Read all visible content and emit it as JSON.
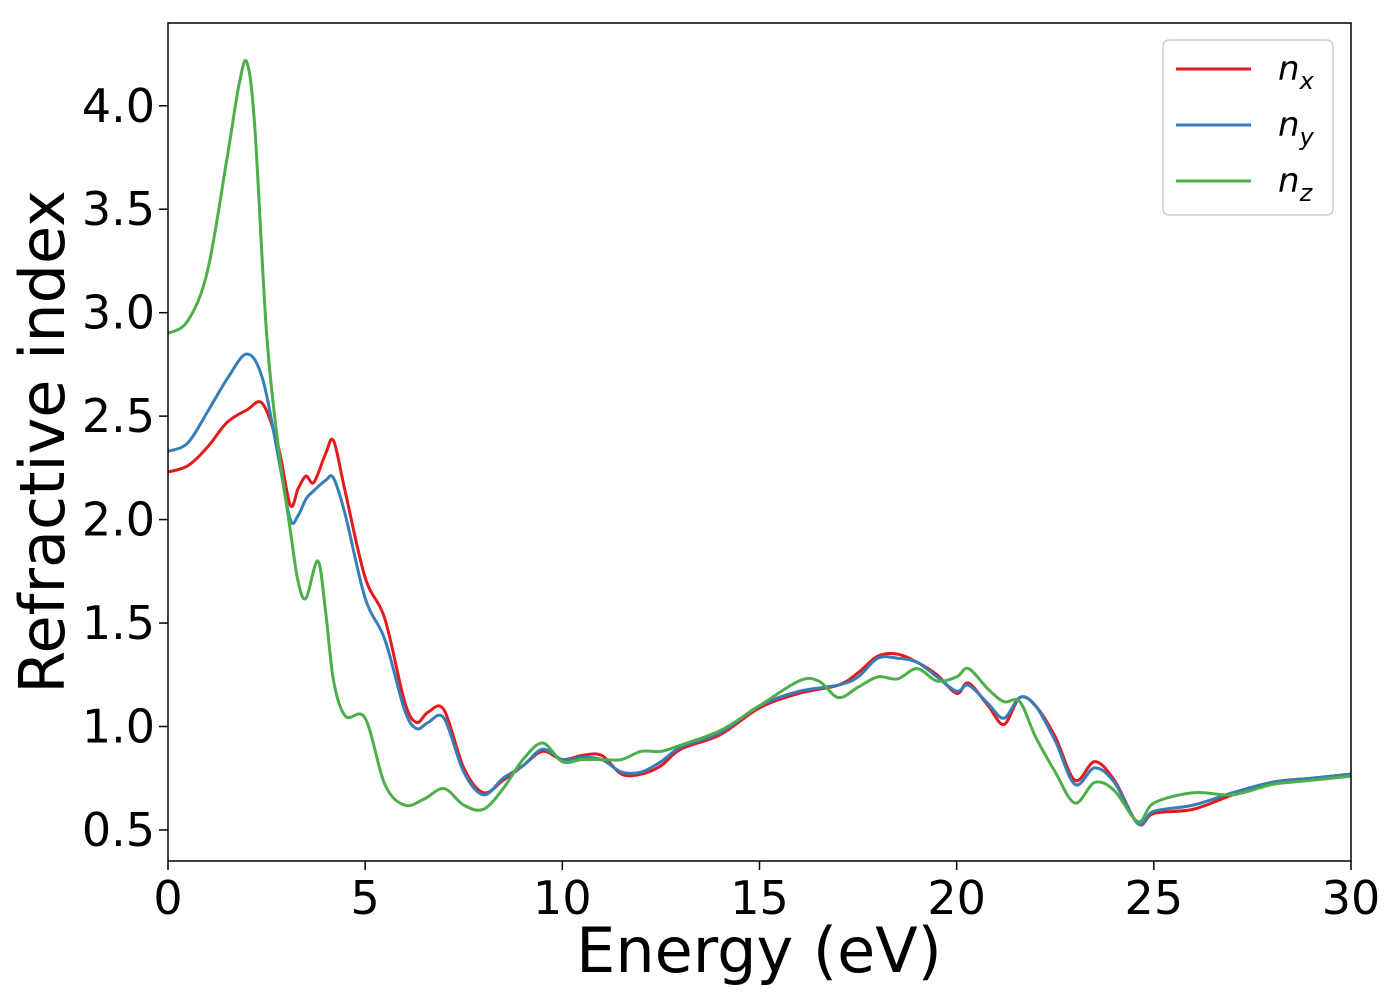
{
  "chart_data": {
    "type": "line",
    "title": "",
    "xlabel": "Energy (eV)",
    "ylabel": "Refractive index",
    "xlim": [
      0,
      30
    ],
    "ylim": [
      0.35,
      4.4
    ],
    "xticks": [
      0,
      5,
      10,
      15,
      20,
      25,
      30
    ],
    "xtick_labels": [
      "0",
      "5",
      "10",
      "15",
      "20",
      "25",
      "30"
    ],
    "yticks": [
      0.5,
      1.0,
      1.5,
      2.0,
      2.5,
      3.0,
      3.5,
      4.0
    ],
    "ytick_labels": [
      "0.5",
      "1.0",
      "1.5",
      "2.0",
      "2.5",
      "3.0",
      "3.5",
      "4.0"
    ],
    "grid": false,
    "legend_position": "top-right",
    "series": [
      {
        "name": "n",
        "subscript": "x",
        "color": "#e41a1c",
        "x": [
          0,
          0.5,
          1,
          1.5,
          2,
          2.4,
          2.8,
          3.1,
          3.3,
          3.5,
          3.7,
          4,
          4.2,
          4.5,
          5,
          5.5,
          6,
          6.3,
          6.6,
          7,
          7.5,
          8,
          8.5,
          9,
          9.5,
          10,
          10.5,
          11,
          11.5,
          12,
          12.5,
          13,
          14,
          15,
          16,
          17,
          17.5,
          18,
          18.5,
          19,
          19.5,
          20,
          20.3,
          20.8,
          21.2,
          21.6,
          22,
          22.5,
          23,
          23.5,
          24,
          24.6,
          25,
          26,
          27,
          28,
          29,
          30
        ],
        "y": [
          2.23,
          2.26,
          2.35,
          2.47,
          2.53,
          2.56,
          2.35,
          2.07,
          2.15,
          2.21,
          2.18,
          2.32,
          2.38,
          2.13,
          1.72,
          1.52,
          1.12,
          1.02,
          1.07,
          1.08,
          0.8,
          0.68,
          0.74,
          0.81,
          0.88,
          0.84,
          0.86,
          0.86,
          0.77,
          0.77,
          0.81,
          0.89,
          0.96,
          1.09,
          1.16,
          1.2,
          1.26,
          1.34,
          1.35,
          1.31,
          1.25,
          1.16,
          1.21,
          1.1,
          1.01,
          1.14,
          1.1,
          0.95,
          0.74,
          0.83,
          0.74,
          0.53,
          0.58,
          0.6,
          0.67,
          0.73,
          0.75,
          0.77
        ]
      },
      {
        "name": "n",
        "subscript": "y",
        "color": "#377eb8",
        "x": [
          0,
          0.5,
          1,
          1.5,
          2,
          2.4,
          2.8,
          3.1,
          3.3,
          3.5,
          3.7,
          4,
          4.2,
          4.5,
          5,
          5.5,
          6,
          6.3,
          6.6,
          7,
          7.5,
          8,
          8.5,
          9,
          9.5,
          10,
          10.5,
          11,
          11.5,
          12,
          12.5,
          13,
          14,
          15,
          16,
          17,
          17.5,
          18,
          18.5,
          19,
          19.5,
          20,
          20.3,
          20.8,
          21.2,
          21.6,
          22,
          22.5,
          23,
          23.5,
          24,
          24.6,
          25,
          26,
          27,
          28,
          29,
          30
        ],
        "y": [
          2.33,
          2.37,
          2.52,
          2.68,
          2.8,
          2.68,
          2.3,
          2.0,
          2.02,
          2.1,
          2.14,
          2.19,
          2.2,
          2.02,
          1.62,
          1.42,
          1.08,
          0.99,
          1.02,
          1.04,
          0.78,
          0.67,
          0.75,
          0.81,
          0.89,
          0.84,
          0.85,
          0.84,
          0.78,
          0.78,
          0.83,
          0.9,
          0.97,
          1.1,
          1.17,
          1.2,
          1.24,
          1.33,
          1.33,
          1.31,
          1.24,
          1.17,
          1.2,
          1.11,
          1.04,
          1.14,
          1.1,
          0.93,
          0.72,
          0.8,
          0.73,
          0.53,
          0.59,
          0.62,
          0.68,
          0.73,
          0.75,
          0.77
        ]
      },
      {
        "name": "n",
        "subscript": "z",
        "color": "#4daf4a",
        "x": [
          0,
          0.5,
          1,
          1.5,
          1.8,
          2,
          2.2,
          2.5,
          2.8,
          3.1,
          3.3,
          3.5,
          3.8,
          4,
          4.2,
          4.5,
          5,
          5.5,
          6,
          6.5,
          7,
          7.5,
          8,
          8.5,
          9,
          9.5,
          10,
          10.5,
          11,
          11.5,
          12,
          12.5,
          13,
          14,
          15,
          16,
          16.5,
          17,
          17.5,
          18,
          18.5,
          19,
          19.5,
          20,
          20.3,
          20.8,
          21.2,
          21.6,
          22,
          22.5,
          23,
          23.5,
          24,
          24.6,
          25,
          26,
          27,
          28,
          29,
          30
        ],
        "y": [
          2.9,
          2.96,
          3.2,
          3.75,
          4.1,
          4.21,
          3.9,
          2.9,
          2.35,
          1.95,
          1.7,
          1.62,
          1.8,
          1.55,
          1.22,
          1.05,
          1.04,
          0.72,
          0.62,
          0.65,
          0.7,
          0.62,
          0.6,
          0.7,
          0.84,
          0.92,
          0.83,
          0.84,
          0.84,
          0.84,
          0.88,
          0.88,
          0.91,
          0.98,
          1.1,
          1.22,
          1.22,
          1.14,
          1.19,
          1.24,
          1.23,
          1.28,
          1.22,
          1.24,
          1.28,
          1.18,
          1.12,
          1.12,
          0.95,
          0.78,
          0.63,
          0.73,
          0.69,
          0.54,
          0.63,
          0.68,
          0.67,
          0.72,
          0.74,
          0.76
        ]
      }
    ]
  }
}
